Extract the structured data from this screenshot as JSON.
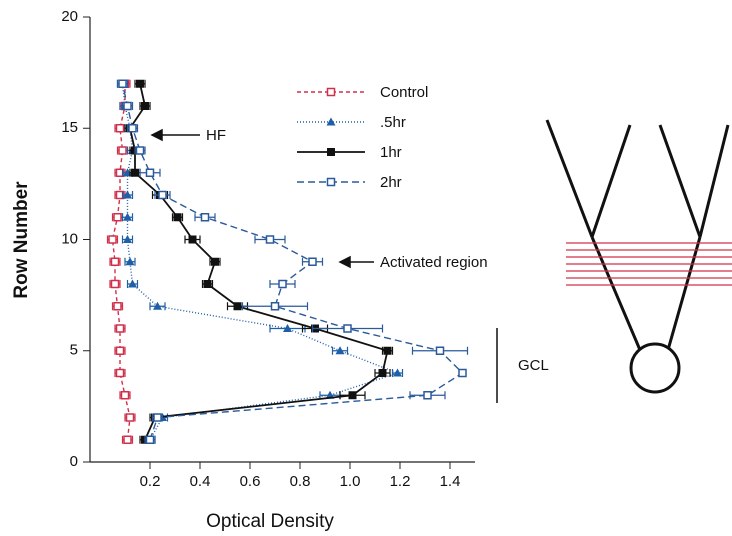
{
  "chart_data": {
    "type": "line",
    "xlabel": "Optical Density",
    "ylabel": "Row Number",
    "y": [
      1,
      2,
      3,
      4,
      5,
      6,
      7,
      8,
      9,
      10,
      11,
      12,
      13,
      14,
      15,
      16,
      17
    ],
    "series": [
      {
        "name": "Control",
        "color": "#d0304a",
        "dash": "4,3",
        "marker": "open-square",
        "values": [
          0.11,
          0.12,
          0.1,
          0.08,
          0.08,
          0.08,
          0.07,
          0.06,
          0.06,
          0.05,
          0.07,
          0.08,
          0.08,
          0.09,
          0.08,
          0.1,
          0.1
        ],
        "errors": [
          0.02,
          0.02,
          0.02,
          0.02,
          0.02,
          0.02,
          0.02,
          0.02,
          0.02,
          0.02,
          0.02,
          0.02,
          0.02,
          0.02,
          0.02,
          0.02,
          0.02
        ]
      },
      {
        "name": ".5hr",
        "color": "#1f5fa8",
        "dash": "1,2",
        "marker": "triangle",
        "values": [
          0.2,
          0.25,
          0.92,
          1.19,
          0.96,
          0.75,
          0.23,
          0.13,
          0.12,
          0.11,
          0.11,
          0.11,
          0.11,
          0.13,
          0.12,
          0.1,
          0.09
        ],
        "errors": [
          0.02,
          0.02,
          0.04,
          0.02,
          0.03,
          0.07,
          0.03,
          0.02,
          0.02,
          0.02,
          0.02,
          0.02,
          0.02,
          0.02,
          0.02,
          0.02,
          0.02
        ]
      },
      {
        "name": "1hr",
        "color": "#111111",
        "dash": "",
        "marker": "square",
        "values": [
          0.18,
          0.22,
          1.01,
          1.13,
          1.15,
          0.86,
          0.55,
          0.43,
          0.46,
          0.37,
          0.31,
          0.24,
          0.14,
          0.14,
          0.12,
          0.18,
          0.16
        ],
        "errors": [
          0.02,
          0.02,
          0.05,
          0.03,
          0.02,
          0.05,
          0.04,
          0.02,
          0.02,
          0.03,
          0.02,
          0.03,
          0.02,
          0.02,
          0.02,
          0.02,
          0.02
        ]
      },
      {
        "name": "2hr",
        "color": "#2a5a9a",
        "dash": "7,4",
        "marker": "open-square",
        "values": [
          0.2,
          0.23,
          1.31,
          1.45,
          1.36,
          0.99,
          0.7,
          0.73,
          0.85,
          0.68,
          0.42,
          0.25,
          0.2,
          0.16,
          0.13,
          0.11,
          0.09
        ],
        "errors": [
          0.02,
          0.02,
          0.07,
          0.01,
          0.11,
          0.14,
          0.13,
          0.05,
          0.04,
          0.06,
          0.04,
          0.03,
          0.04,
          0.02,
          0.02,
          0.02,
          0.02
        ]
      }
    ],
    "xlim": [
      -0.04,
      1.5
    ],
    "xticks": [
      0.2,
      0.4,
      0.6,
      0.8,
      {
        "value": 1,
        "label": "1.0"
      },
      1.2,
      1.4
    ],
    "ylim": [
      0,
      20
    ],
    "yticks": [
      0,
      5,
      10,
      15,
      20
    ],
    "annotations": [
      "HF",
      "Activated region",
      "GCL"
    ]
  }
}
